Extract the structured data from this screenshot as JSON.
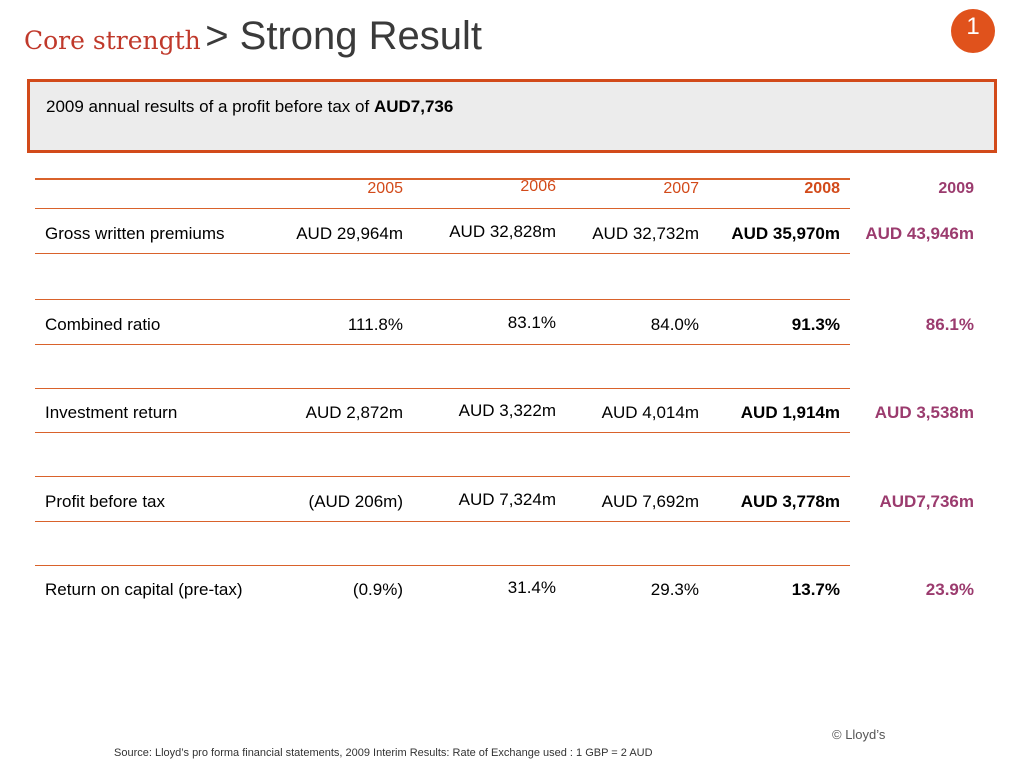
{
  "header": {
    "prefix": "Core strength",
    "title": "> Strong Result",
    "page_badge": "1"
  },
  "callout": {
    "text": "2009 annual results of a profit before tax of ",
    "highlight": "AUD7,736"
  },
  "table": {
    "years": [
      "2005",
      "2006",
      "2007",
      "2008",
      "2009"
    ],
    "rows": [
      {
        "label": "Gross written premiums",
        "values": [
          "AUD 29,964m",
          "AUD 32,828m",
          "AUD 32,732m",
          "AUD 35,970m",
          "AUD 43,946m"
        ]
      },
      {
        "label": "Combined ratio",
        "values": [
          "111.8%",
          "83.1%",
          "84.0%",
          "91.3%",
          "86.1%"
        ]
      },
      {
        "label": "Investment return",
        "values": [
          "AUD 2,872m",
          "AUD 3,322m",
          "AUD 4,014m",
          "AUD 1,914m",
          "AUD 3,538m"
        ]
      },
      {
        "label": "Profit before tax",
        "values": [
          "(AUD 206m)",
          "AUD 7,324m",
          "AUD 7,692m",
          "AUD 3,778m",
          "AUD7,736m"
        ]
      },
      {
        "label": "Return on capital (pre-tax)",
        "values": [
          "(0.9%)",
          "31.4%",
          "29.3%",
          "13.7%",
          "23.9%"
        ]
      }
    ]
  },
  "footer": {
    "copyright": "© Lloyd’s",
    "source": "Source: Lloyd’s pro forma financial statements, 2009 Interim Results: Rate of Exchange used : 1 GBP = 2 AUD"
  },
  "colors": {
    "accent": "#d24a1a",
    "highlight_2009": "#9b3b6e",
    "badge": "#e0521c"
  }
}
